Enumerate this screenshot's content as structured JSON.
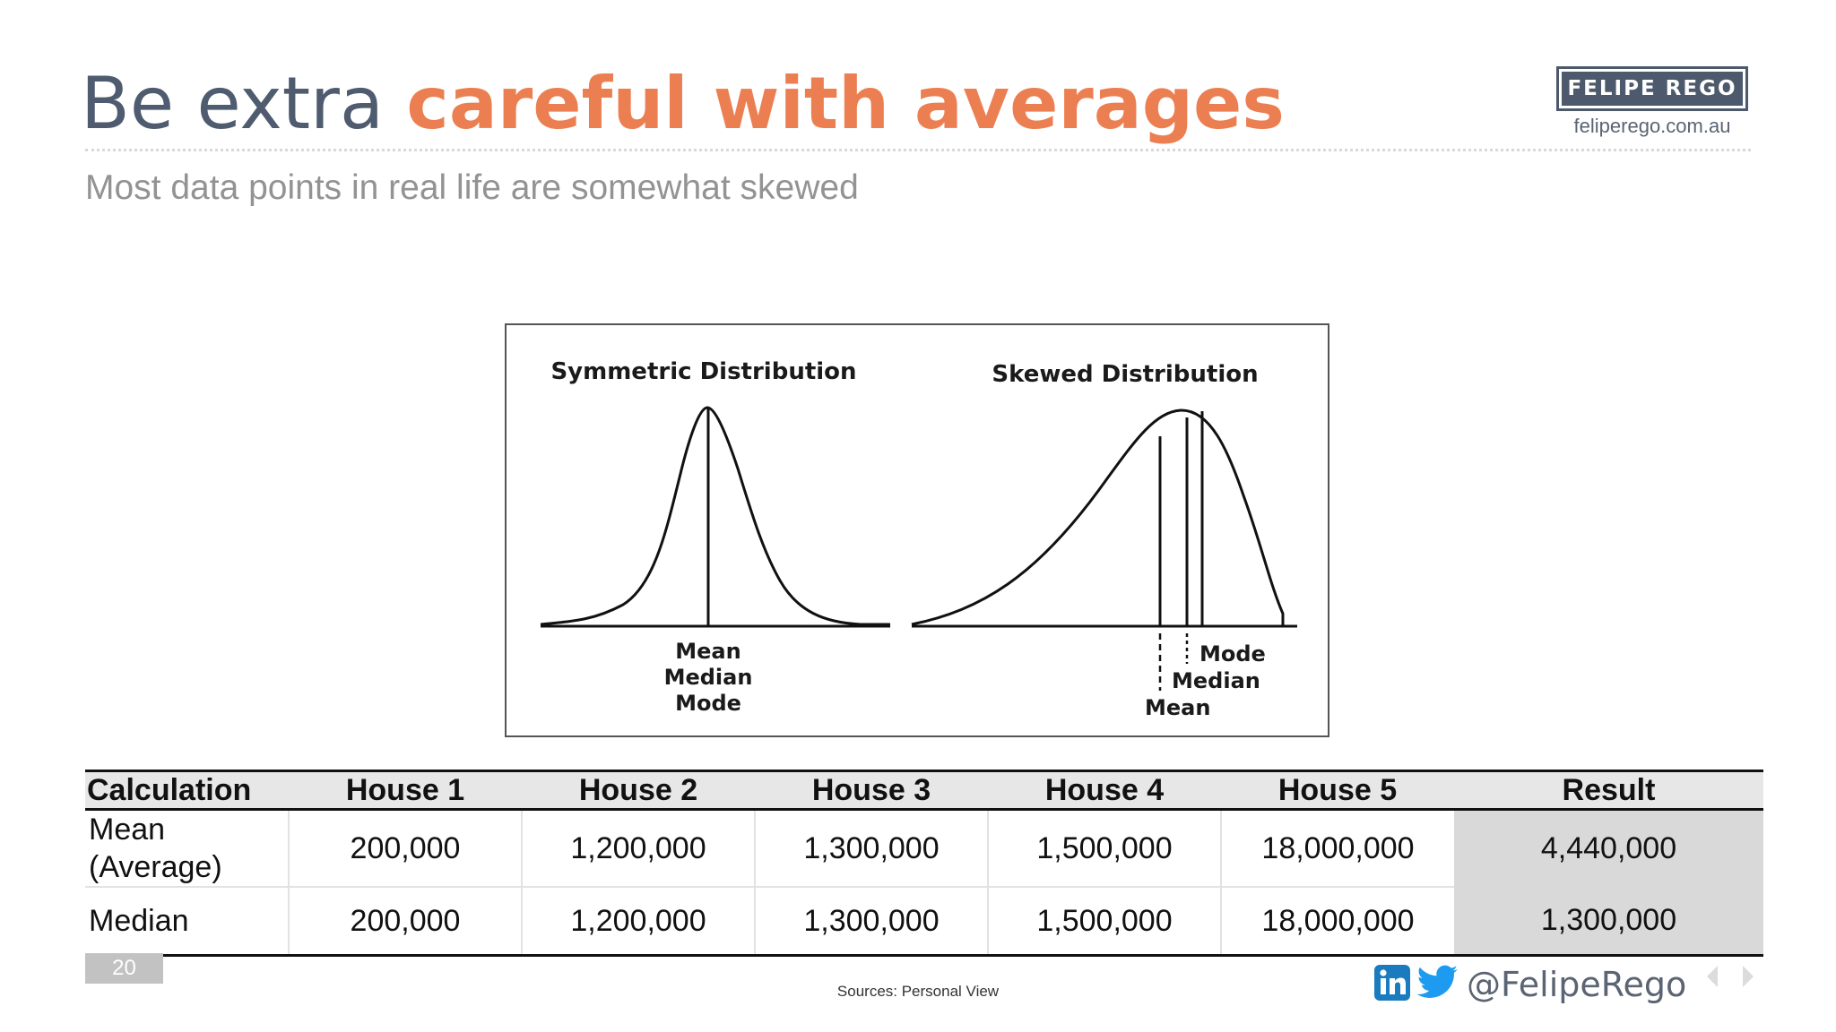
{
  "header": {
    "title_plain": "Be extra ",
    "title_accent": "careful with averages",
    "subtitle": "Most data points in real life are somewhat skewed"
  },
  "brand": {
    "name": "FELIPE REGO",
    "url": "feliperego.com.au"
  },
  "figure": {
    "symmetric_title": "Symmetric Distribution",
    "skewed_title": "Skewed Distribution",
    "symmetric_labels": [
      "Mean",
      "Median",
      "Mode"
    ],
    "skewed_labels": {
      "mode": "Mode",
      "median": "Median",
      "mean": "Mean"
    }
  },
  "table": {
    "headers": [
      "Calculation",
      "House 1",
      "House 2",
      "House 3",
      "House 4",
      "House 5",
      "Result"
    ],
    "rows": [
      {
        "label_line1": "Mean",
        "label_line2": "(Average)",
        "values": [
          "200,000",
          "1,200,000",
          "1,300,000",
          "1,500,000",
          "18,000,000"
        ],
        "result": "4,440,000"
      },
      {
        "label": "Median",
        "values": [
          "200,000",
          "1,200,000",
          "1,300,000",
          "1,500,000",
          "18,000,000"
        ],
        "result": "1,300,000"
      }
    ]
  },
  "footer": {
    "page_number": "20",
    "sources": "Sources: Personal View",
    "social_handle": "@FelipeRego",
    "icons": [
      "linkedin-icon",
      "twitter-icon",
      "prev-arrow-icon",
      "next-arrow-icon"
    ]
  },
  "colors": {
    "title": "#4f5b6f",
    "accent": "#ec7f52",
    "brand": "#4d596c",
    "linkedin": "#1a7bbf",
    "twitter": "#1d9bf0"
  }
}
